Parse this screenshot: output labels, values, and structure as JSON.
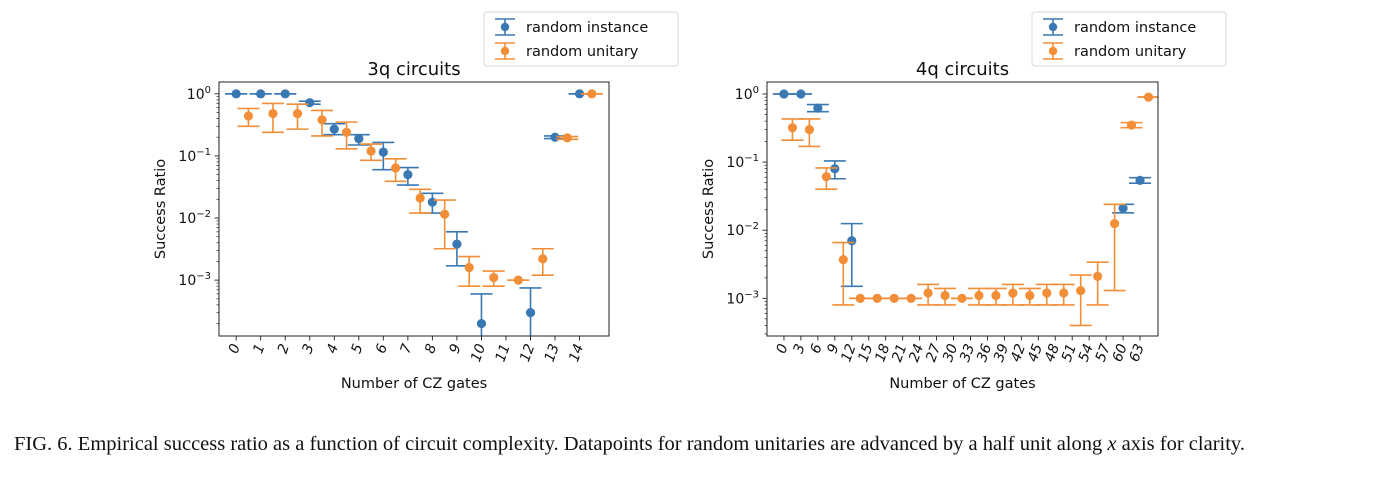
{
  "colors": {
    "random_instance": "#3a78b4",
    "random_unitary": "#f28e37"
  },
  "caption": {
    "label": "FIG. 6.",
    "text_before": "Empirical success ratio as a function of circuit complexity. Datapoints for random unitaries are advanced by a half unit along ",
    "var": "x",
    "text_after": " axis for clarity."
  },
  "chart_data": [
    {
      "type": "scatter",
      "title": "3q circuits",
      "xlabel": "Number of CZ gates",
      "ylabel": "Success Ratio",
      "yscale": "log",
      "ylim": [
        0.000126,
        1.55
      ],
      "yticks": [
        1,
        0.1,
        0.01,
        0.001
      ],
      "ytick_labels": [
        [
          "10",
          "0"
        ],
        [
          "10",
          "−1"
        ],
        [
          "10",
          "−2"
        ],
        [
          "10",
          "−3"
        ]
      ],
      "categories": [
        "0",
        "1",
        "2",
        "3",
        "4",
        "5",
        "6",
        "7",
        "8",
        "9",
        "10",
        "11",
        "12",
        "13",
        "14"
      ],
      "unitary_offset": 0.5,
      "legend": {
        "placement": "top-right, above axes",
        "entries": [
          "random instance",
          "random unitary"
        ]
      },
      "series": [
        {
          "name": "random instance",
          "points": [
            {
              "x": "0",
              "y": 1,
              "lo": 1,
              "hi": 1
            },
            {
              "x": "1",
              "y": 1,
              "lo": 1,
              "hi": 1
            },
            {
              "x": "2",
              "y": 1,
              "lo": 1,
              "hi": 1
            },
            {
              "x": "3",
              "y": 0.72,
              "lo": 0.68,
              "hi": 0.76
            },
            {
              "x": "4",
              "y": 0.27,
              "lo": 0.22,
              "hi": 0.33
            },
            {
              "x": "5",
              "y": 0.19,
              "lo": 0.15,
              "hi": 0.22
            },
            {
              "x": "6",
              "y": 0.115,
              "lo": 0.06,
              "hi": 0.165
            },
            {
              "x": "7",
              "y": 0.05,
              "lo": 0.034,
              "hi": 0.065
            },
            {
              "x": "8",
              "y": 0.018,
              "lo": 0.012,
              "hi": 0.025
            },
            {
              "x": "9",
              "y": 0.0038,
              "lo": 0.0017,
              "hi": 0.006
            },
            {
              "x": "10",
              "y": 0.0002,
              "lo": 0,
              "hi": 0.0006
            },
            {
              "x": "12",
              "y": 0.0003,
              "lo": 0,
              "hi": 0.00075
            },
            {
              "x": "13",
              "y": 0.2,
              "lo": 0.19,
              "hi": 0.21
            },
            {
              "x": "14",
              "y": 1,
              "lo": 1,
              "hi": 1
            }
          ]
        },
        {
          "name": "random unitary",
          "points": [
            {
              "x": "0",
              "y": 0.44,
              "lo": 0.3,
              "hi": 0.58
            },
            {
              "x": "1",
              "y": 0.48,
              "lo": 0.24,
              "hi": 0.7
            },
            {
              "x": "2",
              "y": 0.48,
              "lo": 0.27,
              "hi": 0.68
            },
            {
              "x": "3",
              "y": 0.38,
              "lo": 0.21,
              "hi": 0.54
            },
            {
              "x": "4",
              "y": 0.24,
              "lo": 0.13,
              "hi": 0.35
            },
            {
              "x": "5",
              "y": 0.12,
              "lo": 0.085,
              "hi": 0.155
            },
            {
              "x": "6",
              "y": 0.064,
              "lo": 0.039,
              "hi": 0.09
            },
            {
              "x": "7",
              "y": 0.021,
              "lo": 0.012,
              "hi": 0.029
            },
            {
              "x": "8",
              "y": 0.0115,
              "lo": 0.0032,
              "hi": 0.0195
            },
            {
              "x": "9",
              "y": 0.0016,
              "lo": 0.0008,
              "hi": 0.0024
            },
            {
              "x": "10",
              "y": 0.0011,
              "lo": 0.0008,
              "hi": 0.0014
            },
            {
              "x": "11",
              "y": 0.001,
              "lo": 0.001,
              "hi": 0.001
            },
            {
              "x": "12",
              "y": 0.0022,
              "lo": 0.0012,
              "hi": 0.0032
            },
            {
              "x": "13",
              "y": 0.195,
              "lo": 0.185,
              "hi": 0.205
            },
            {
              "x": "14",
              "y": 1,
              "lo": 1,
              "hi": 1
            }
          ]
        }
      ]
    },
    {
      "type": "scatter",
      "title": "4q circuits",
      "xlabel": "Number of CZ gates",
      "ylabel": "Success Ratio",
      "yscale": "log",
      "ylim": [
        0.00028,
        1.5
      ],
      "yticks": [
        1,
        0.1,
        0.01,
        0.001
      ],
      "ytick_labels": [
        [
          "10",
          "0"
        ],
        [
          "10",
          "−1"
        ],
        [
          "10",
          "−2"
        ],
        [
          "10",
          "−3"
        ]
      ],
      "categories": [
        "0",
        "3",
        "6",
        "9",
        "12",
        "15",
        "18",
        "21",
        "24",
        "27",
        "30",
        "33",
        "36",
        "39",
        "42",
        "45",
        "48",
        "51",
        "54",
        "57",
        "60",
        "63"
      ],
      "unitary_offset": 0.5,
      "legend": {
        "placement": "top-right, above axes",
        "entries": [
          "random instance",
          "random unitary"
        ]
      },
      "series": [
        {
          "name": "random instance",
          "points": [
            {
              "x": "0",
              "y": 1,
              "lo": 1,
              "hi": 1
            },
            {
              "x": "3",
              "y": 1,
              "lo": 1,
              "hi": 1
            },
            {
              "x": "6",
              "y": 0.62,
              "lo": 0.55,
              "hi": 0.7
            },
            {
              "x": "9",
              "y": 0.08,
              "lo": 0.057,
              "hi": 0.104
            },
            {
              "x": "12",
              "y": 0.007,
              "lo": 0.0015,
              "hi": 0.0125
            },
            {
              "x": "60",
              "y": 0.021,
              "lo": 0.018,
              "hi": 0.024
            },
            {
              "x": "63",
              "y": 0.054,
              "lo": 0.049,
              "hi": 0.059
            }
          ]
        },
        {
          "name": "random unitary",
          "points": [
            {
              "x": "0",
              "y": 0.32,
              "lo": 0.21,
              "hi": 0.43
            },
            {
              "x": "3",
              "y": 0.3,
              "lo": 0.17,
              "hi": 0.43
            },
            {
              "x": "6",
              "y": 0.061,
              "lo": 0.04,
              "hi": 0.082
            },
            {
              "x": "9",
              "y": 0.0037,
              "lo": 0.0008,
              "hi": 0.0066
            },
            {
              "x": "12",
              "y": 0.001,
              "lo": 0.001,
              "hi": 0.001
            },
            {
              "x": "15",
              "y": 0.001,
              "lo": 0.001,
              "hi": 0.001
            },
            {
              "x": "18",
              "y": 0.001,
              "lo": 0.001,
              "hi": 0.001
            },
            {
              "x": "21",
              "y": 0.001,
              "lo": 0.001,
              "hi": 0.001
            },
            {
              "x": "24",
              "y": 0.0012,
              "lo": 0.0008,
              "hi": 0.0016
            },
            {
              "x": "27",
              "y": 0.0011,
              "lo": 0.0008,
              "hi": 0.0014
            },
            {
              "x": "30",
              "y": 0.001,
              "lo": 0.001,
              "hi": 0.001
            },
            {
              "x": "33",
              "y": 0.0011,
              "lo": 0.0008,
              "hi": 0.0014
            },
            {
              "x": "36",
              "y": 0.0011,
              "lo": 0.0008,
              "hi": 0.0014
            },
            {
              "x": "39",
              "y": 0.0012,
              "lo": 0.0008,
              "hi": 0.0016
            },
            {
              "x": "42",
              "y": 0.0011,
              "lo": 0.0008,
              "hi": 0.0014
            },
            {
              "x": "45",
              "y": 0.0012,
              "lo": 0.0008,
              "hi": 0.0016
            },
            {
              "x": "48",
              "y": 0.0012,
              "lo": 0.0008,
              "hi": 0.0016
            },
            {
              "x": "51",
              "y": 0.0013,
              "lo": 0.0004,
              "hi": 0.0022
            },
            {
              "x": "54",
              "y": 0.0021,
              "lo": 0.0008,
              "hi": 0.0034
            },
            {
              "x": "57",
              "y": 0.0125,
              "lo": 0.0013,
              "hi": 0.024
            },
            {
              "x": "60",
              "y": 0.35,
              "lo": 0.32,
              "hi": 0.38
            },
            {
              "x": "63",
              "y": 0.9,
              "lo": 0.9,
              "hi": 0.9
            }
          ]
        }
      ]
    }
  ]
}
